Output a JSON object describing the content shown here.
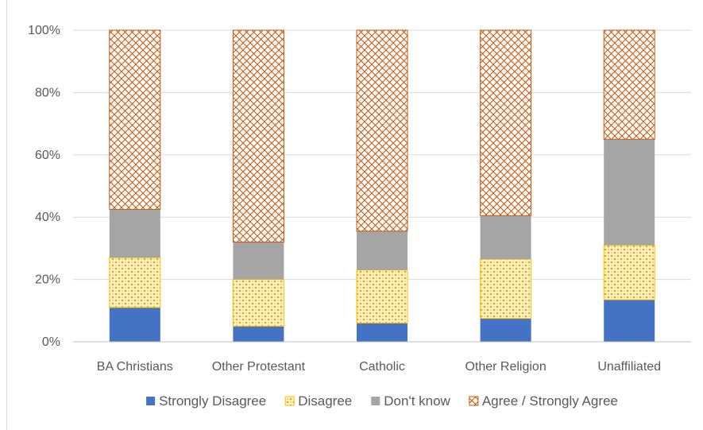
{
  "chart_data": {
    "type": "bar",
    "stacked": true,
    "categories": [
      "BA Christians",
      "Other Protestant",
      "Catholic",
      "Other Religion",
      "Unaffiliated"
    ],
    "series": [
      {
        "name": "Strongly Disagree",
        "values": [
          11,
          5,
          6,
          7.5,
          13.5
        ],
        "color": "#4472c4",
        "pattern": "solid"
      },
      {
        "name": "Disagree",
        "values": [
          16,
          15,
          17,
          19,
          17.5
        ],
        "color": "#ffc000",
        "pattern": "dots"
      },
      {
        "name": "Don't know",
        "values": [
          15.5,
          12,
          12.5,
          14,
          34
        ],
        "color": "#a5a5a5",
        "pattern": "solid"
      },
      {
        "name": "Agree / Strongly Agree",
        "values": [
          57.5,
          68,
          64.5,
          59.5,
          35
        ],
        "color": "#c55a11",
        "pattern": "crosshatch"
      }
    ],
    "y_ticks": [
      "0%",
      "20%",
      "40%",
      "60%",
      "80%",
      "100%"
    ],
    "ylim": [
      0,
      100
    ],
    "grid": true,
    "legend_position": "bottom",
    "title": "",
    "xlabel": "",
    "ylabel": ""
  }
}
